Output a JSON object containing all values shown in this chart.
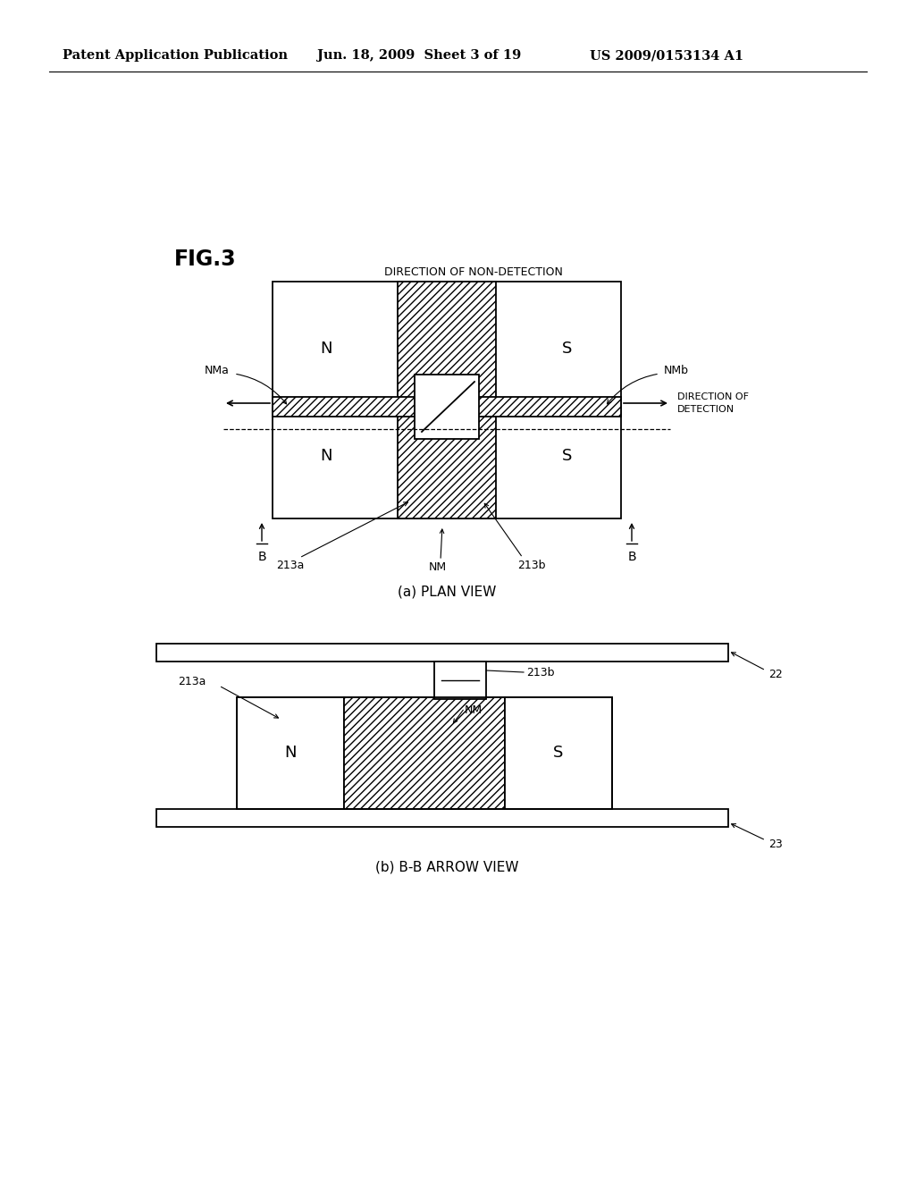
{
  "bg_color": "#ffffff",
  "header_left": "Patent Application Publication",
  "header_mid": "Jun. 18, 2009  Sheet 3 of 19",
  "header_right": "US 2009/0153134 A1",
  "fig_label": "FIG.3",
  "diagram_a_label": "(a) PLAN VIEW",
  "diagram_b_label": "(b) B-B ARROW VIEW",
  "direction_non_detection": "DIRECTION OF NON-DETECTION",
  "direction_detection_1": "DIRECTION OF",
  "direction_detection_2": "DETECTION",
  "NMa": "NMa",
  "NMb": "NMb",
  "NM": "NM",
  "label_213a": "213a",
  "label_213b": "213b",
  "label_B": "B",
  "label_N": "N",
  "label_S": "S",
  "label_22": "22",
  "label_23": "23",
  "hatch_pattern": "////",
  "line_color": "#000000"
}
